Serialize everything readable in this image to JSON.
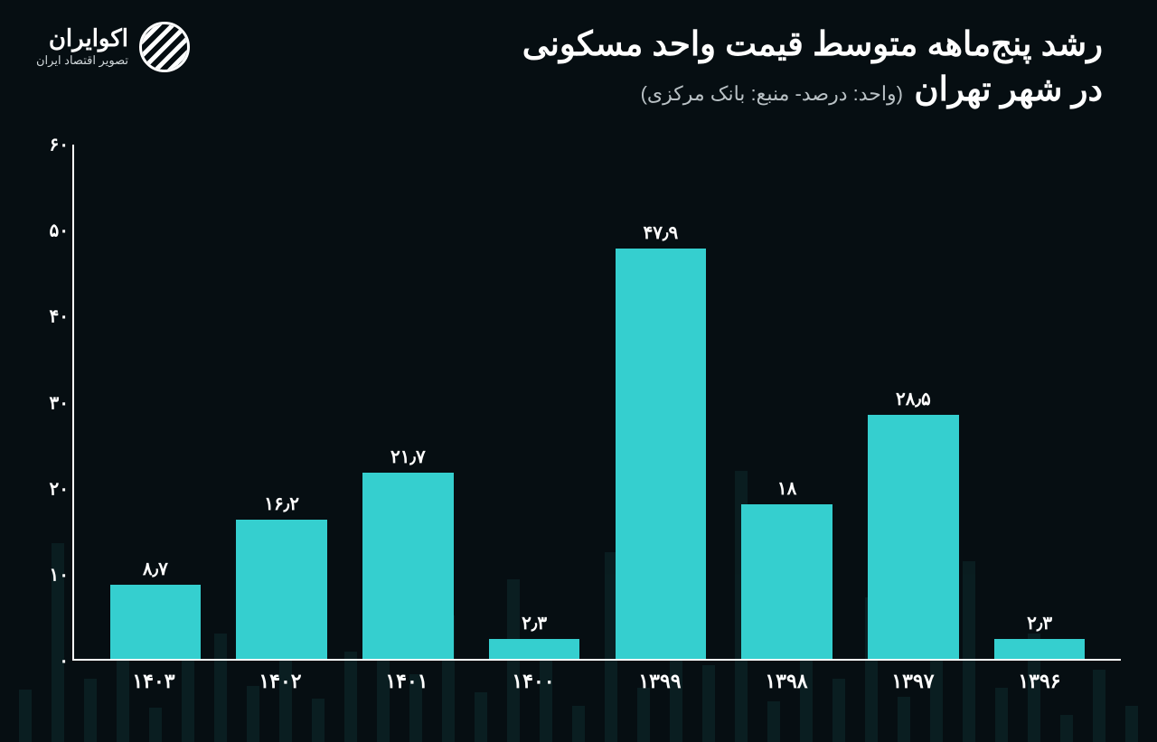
{
  "header": {
    "title_line1": "رشد پنج‌ماهه متوسط قیمت واحد مسکونی",
    "title_line2": "در شهر تهران",
    "subtitle": "(واحد: درصد- منبع: بانک مرکزی)",
    "logo_name": "اکوایران",
    "logo_tagline": "تصویر اقتصاد ایران"
  },
  "chart": {
    "type": "bar",
    "background_color": "#060e12",
    "bar_color": "#35cfcf",
    "axis_color": "#ffffff",
    "text_color": "#ffffff",
    "title_fontsize": 37,
    "label_fontsize": 20,
    "xlabel_fontsize": 22,
    "ylim": [
      0,
      60
    ],
    "ytick_step": 10,
    "yticks": [
      "۰",
      "۱۰",
      "۲۰",
      "۳۰",
      "۴۰",
      "۵۰",
      "۶۰"
    ],
    "categories": [
      "۱۳۹۶",
      "۱۳۹۷",
      "۱۳۹۸",
      "۱۳۹۹",
      "۱۴۰۰",
      "۱۴۰۱",
      "۱۴۰۲",
      "۱۴۰۳"
    ],
    "values": [
      2.3,
      28.5,
      18,
      47.9,
      2.3,
      21.7,
      16.2,
      8.7
    ],
    "value_labels": [
      "۲٫۳",
      "۲۸٫۵",
      "۱۸",
      "۴۷٫۹",
      "۲٫۳",
      "۲۱٫۷",
      "۱۶٫۲",
      "۸٫۷"
    ],
    "bar_width_pct": 72
  },
  "bg_decoration_heights": [
    40,
    80,
    30,
    120,
    60,
    200,
    90,
    50,
    160,
    70,
    110,
    45,
    300,
    85,
    130,
    60,
    210,
    40,
    95,
    180,
    55,
    140,
    75,
    260,
    100,
    48,
    170,
    62,
    120,
    90,
    38,
    150,
    70,
    220,
    58
  ]
}
